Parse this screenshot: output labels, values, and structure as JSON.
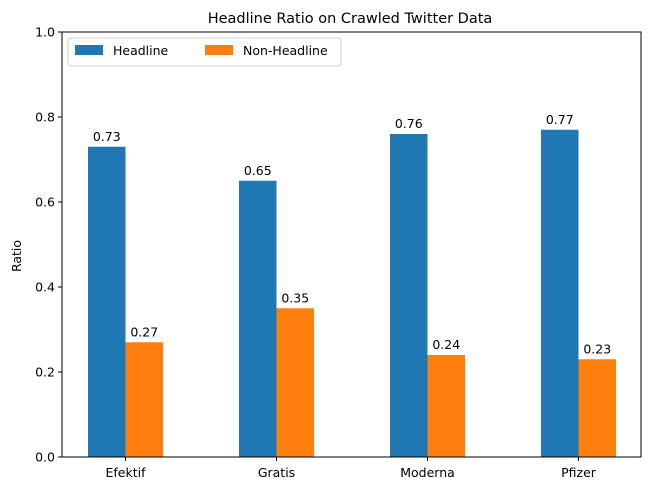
{
  "chart_data": {
    "type": "bar",
    "title": "Headline Ratio on Crawled Twitter Data",
    "xlabel": "",
    "ylabel": "Ratio",
    "categories": [
      "Efektif",
      "Gratis",
      "Moderna",
      "Pfizer"
    ],
    "series": [
      {
        "name": "Headline",
        "color": "#1f77b4",
        "values": [
          0.73,
          0.65,
          0.76,
          0.77
        ],
        "labels": [
          "0.73",
          "0.65",
          "0.76",
          "0.77"
        ]
      },
      {
        "name": "Non-Headline",
        "color": "#ff7f0e",
        "values": [
          0.27,
          0.35,
          0.24,
          0.23
        ],
        "labels": [
          "0.27",
          "0.35",
          "0.24",
          "0.23"
        ]
      }
    ],
    "ylim": [
      0,
      1.0
    ],
    "yticks": [
      0.0,
      0.2,
      0.4,
      0.6,
      0.8,
      1.0
    ],
    "ytick_labels": [
      "0.0",
      "0.2",
      "0.4",
      "0.6",
      "0.8",
      "1.0"
    ],
    "grid": false,
    "legend": {
      "placement": "top-left",
      "columns": 2
    }
  }
}
